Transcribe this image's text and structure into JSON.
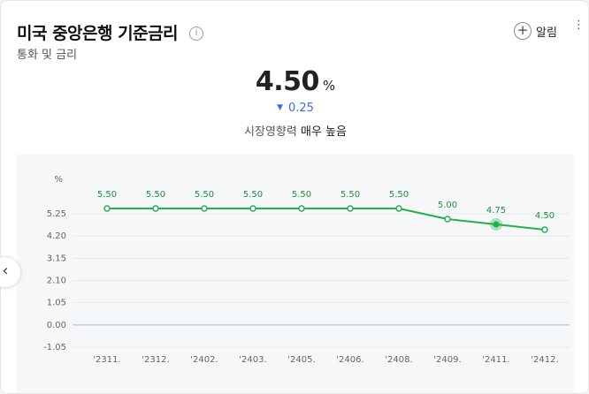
{
  "header": {
    "title": "미국 중앙은행 기준금리",
    "subtitle": "통화 및 금리",
    "info_glyph": "i",
    "alarm_label": "알림",
    "alarm_glyph": "+",
    "more_glyph": "⋮"
  },
  "summary": {
    "value": "4.50",
    "unit": "%",
    "change_glyph": "▼",
    "change": "0.25",
    "impact_prefix": "시장영향력",
    "impact_level": "매우 높음"
  },
  "nav": {
    "prev_glyph": "‹"
  },
  "colors": {
    "line": "#22b24c",
    "grid": "#e6e8eb",
    "zero": "#9dbce8",
    "change_down": "#3d6fdc"
  },
  "chart_data": {
    "type": "line",
    "unit_label": "%",
    "categories": [
      "'2311.",
      "'2312.",
      "'2402.",
      "'2403.",
      "'2405.",
      "'2406.",
      "'2408.",
      "'2409.",
      "'2411.",
      "'2412."
    ],
    "values": [
      5.5,
      5.5,
      5.5,
      5.5,
      5.5,
      5.5,
      5.5,
      5.0,
      4.75,
      4.5
    ],
    "data_labels": [
      "5.50",
      "5.50",
      "5.50",
      "5.50",
      "5.50",
      "5.50",
      "5.50",
      "5.00",
      "4.75",
      "4.50"
    ],
    "y_ticks": [
      "5.25",
      "4.20",
      "3.15",
      "2.10",
      "1.05",
      "0.00",
      "-1.05"
    ],
    "y_tick_values": [
      5.25,
      4.2,
      3.15,
      2.1,
      1.05,
      0.0,
      -1.05
    ],
    "ylim": [
      -1.05,
      5.25
    ],
    "highlight_index": 8,
    "grid": true
  }
}
